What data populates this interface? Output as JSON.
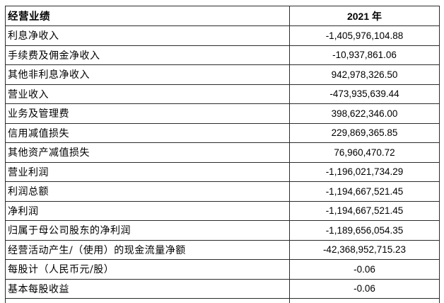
{
  "page": {
    "background_color": "#ffffff",
    "border_color": "#2b2b2b",
    "text_color": "#000000"
  },
  "table": {
    "header": {
      "metric": "经营业绩",
      "year": "2021 年"
    },
    "rows": [
      {
        "label": "利息净收入",
        "value": "-1,405,976,104.88"
      },
      {
        "label": "手续费及佣金净收入",
        "value": "-10,937,861.06"
      },
      {
        "label": "其他非利息净收入",
        "value": "942,978,326.50"
      },
      {
        "label": "营业收入",
        "value": "-473,935,639.44"
      },
      {
        "label": "业务及管理费",
        "value": "398,622,346.00"
      },
      {
        "label": "信用减值损失",
        "value": "229,869,365.85"
      },
      {
        "label": "其他资产减值损失",
        "value": "76,960,470.72"
      },
      {
        "label": "营业利润",
        "value": "-1,196,021,734.29"
      },
      {
        "label": "利润总额",
        "value": "-1,194,667,521.45"
      },
      {
        "label": "净利润",
        "value": "-1,194,667,521.45"
      },
      {
        "label": "归属于母公司股东的净利润",
        "value": "-1,189,656,054.35"
      },
      {
        "label": "经营活动产生/（使用）的现金流量净额",
        "value": "-42,368,952,715.23"
      },
      {
        "label": "每股计（人民币元/股）",
        "value": "-0.06"
      },
      {
        "label": "基本每股收益",
        "value": "-0.06"
      }
    ]
  }
}
